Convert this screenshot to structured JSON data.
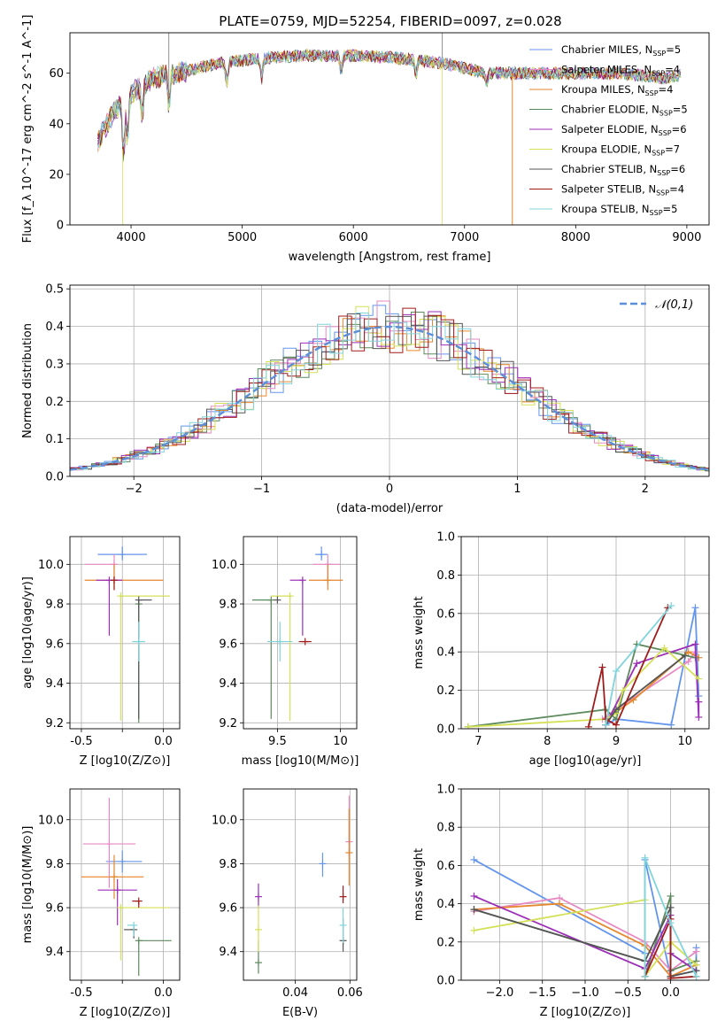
{
  "figure": {
    "title": "PLATE=0759, MJD=52254, FIBERID=0097, z=0.028",
    "colors": [
      "#6495ed",
      "#e78ac3",
      "#e6862d",
      "#5d8a5d",
      "#9c2fb8",
      "#d4e157",
      "#555555",
      "#a01c1c",
      "#80d4dc"
    ]
  },
  "legend": {
    "entries": [
      {
        "name": "Chabrier MILES",
        "n": "5"
      },
      {
        "name": "Salpeter MILES",
        "n": "4"
      },
      {
        "name": "Kroupa MILES",
        "n": "4"
      },
      {
        "name": "Chabrier ELODIE",
        "n": "5"
      },
      {
        "name": "Salpeter ELODIE",
        "n": "6"
      },
      {
        "name": "Kroupa ELODIE",
        "n": "7"
      },
      {
        "name": "Chabrier STELIB",
        "n": "6"
      },
      {
        "name": "Salpeter STELIB",
        "n": "4"
      },
      {
        "name": "Kroupa STELIB",
        "n": "5"
      }
    ],
    "n_prefix": "N",
    "n_sub": "SSP",
    "gauss_label": "𝒩(0,1)"
  },
  "chart_data": [
    {
      "id": "spectrum",
      "type": "line",
      "xlabel": "wavelength [Angstrom, rest frame]",
      "ylabel": "Flux [f_λ 10^-17 erg cm^-2 s^-1 A^-1]",
      "xlim": [
        3450,
        9200
      ],
      "ylim": [
        0,
        76
      ],
      "xticks": [
        4000,
        5000,
        6000,
        7000,
        8000,
        9000
      ],
      "yticks": [
        0,
        20,
        40,
        60
      ],
      "grid": false,
      "legend_position": "top-right",
      "continuum_x": [
        3700,
        3850,
        4000,
        4200,
        4500,
        4800,
        5200,
        5600,
        6000,
        6400,
        6800,
        7200,
        7600,
        8000,
        8400,
        8800,
        9000
      ],
      "continuum_y": [
        33,
        45,
        52,
        58,
        61,
        64,
        66,
        67,
        67,
        66,
        64,
        60,
        60,
        60,
        60,
        58,
        60
      ]
    },
    {
      "id": "residuals",
      "type": "histogram",
      "xlabel": "(data-model)/error",
      "ylabel": "Normed distribution",
      "xlim": [
        -2.5,
        2.5
      ],
      "ylim": [
        0,
        0.51
      ],
      "xticks": [
        -2,
        -1,
        0,
        1,
        2
      ],
      "yticks": [
        0.0,
        0.1,
        0.2,
        0.3,
        0.4,
        0.5
      ],
      "grid": true,
      "legend_position": "top-right",
      "bin_width": 0.1,
      "gaussian": {
        "mean": 0,
        "sigma": 1
      }
    },
    {
      "id": "age_vs_Z",
      "type": "scatter",
      "xlabel": "Z [log10(Z/Z⊙)]",
      "ylabel": "age [log10(age/yr)]",
      "xlim": [
        -0.57,
        0.1
      ],
      "ylim": [
        9.17,
        10.14
      ],
      "xticks": [
        -0.5,
        -0.25,
        0.0
      ],
      "xtick_labels": [
        "-0.5",
        "",
        "0.0"
      ],
      "yticks": [
        9.2,
        9.4,
        9.6,
        9.8,
        10.0
      ],
      "grid": true,
      "points": [
        {
          "x": -0.25,
          "xerr": [
            0.15,
            0.15
          ],
          "y": 10.05,
          "yerr": [
            0.03,
            0.04
          ]
        },
        {
          "x": -0.3,
          "xerr": [
            0.18,
            0.0
          ],
          "y": 10.0,
          "yerr": [
            0.07,
            0.05
          ]
        },
        {
          "x": -0.3,
          "xerr": [
            0.18,
            0.3
          ],
          "y": 9.92,
          "yerr": [
            0.05,
            0.08
          ]
        },
        {
          "x": -0.15,
          "xerr": [
            0.0,
            0.0
          ],
          "y": 9.8,
          "yerr": [
            0.6,
            0.0
          ]
        },
        {
          "x": -0.33,
          "xerr": [
            0.08,
            0.08
          ],
          "y": 9.92,
          "yerr": [
            0.28,
            0.0
          ]
        },
        {
          "x": -0.26,
          "xerr": [
            0.0,
            0.3
          ],
          "y": 9.84,
          "yerr": [
            0.63,
            0.0
          ]
        },
        {
          "x": -0.15,
          "xerr": [
            0.0,
            0.08
          ],
          "y": 9.82,
          "yerr": [
            0.6,
            0.0
          ]
        },
        {
          "x": -0.3,
          "xerr": [
            0.0,
            0.0
          ],
          "y": 9.92,
          "yerr": [
            0.05,
            0.0
          ]
        },
        {
          "x": -0.15,
          "xerr": [
            0.04,
            0.04
          ],
          "y": 9.61,
          "yerr": [
            0.1,
            0.1
          ]
        }
      ]
    },
    {
      "id": "age_vs_mass",
      "type": "scatter",
      "xlabel": "mass [log10(M/M⊙)]",
      "ylabel": "",
      "xlim": [
        9.23,
        10.13
      ],
      "ylim": [
        9.17,
        10.14
      ],
      "xticks": [
        9.5,
        10.0
      ],
      "yticks": [
        9.2,
        9.4,
        9.6,
        9.8,
        10.0
      ],
      "grid": true,
      "points": [
        {
          "x": 9.85,
          "xerr": [
            0.05,
            0.05
          ],
          "y": 10.05,
          "yerr": [
            0.03,
            0.04
          ]
        },
        {
          "x": 9.9,
          "xerr": [
            0.12,
            0.1
          ],
          "y": 10.0,
          "yerr": [
            0.07,
            0.05
          ]
        },
        {
          "x": 9.9,
          "xerr": [
            0.15,
            0.12
          ],
          "y": 9.92,
          "yerr": [
            0.05,
            0.08
          ]
        },
        {
          "x": 9.45,
          "xerr": [
            0.15,
            0.0
          ],
          "y": 9.82,
          "yerr": [
            0.6,
            0.0
          ]
        },
        {
          "x": 9.7,
          "xerr": [
            0.1,
            0.0
          ],
          "y": 9.92,
          "yerr": [
            0.28,
            0.0
          ]
        },
        {
          "x": 9.6,
          "xerr": [
            0.15,
            0.0
          ],
          "y": 9.84,
          "yerr": [
            0.63,
            0.0
          ]
        },
        {
          "x": 9.5,
          "xerr": [
            0.0,
            0.0
          ],
          "y": 9.82,
          "yerr": [
            0.0,
            0.0
          ]
        },
        {
          "x": 9.72,
          "xerr": [
            0.05,
            0.05
          ],
          "y": 9.61,
          "yerr": [
            0.0,
            0.0
          ]
        },
        {
          "x": 9.52,
          "xerr": [
            0.1,
            0.1
          ],
          "y": 9.61,
          "yerr": [
            0.1,
            0.1
          ]
        }
      ]
    },
    {
      "id": "weight_vs_age",
      "type": "line",
      "xlabel": "age [log10(age/yr)]",
      "ylabel": "mass weight",
      "xlim": [
        6.75,
        10.35
      ],
      "ylim": [
        0,
        1.0
      ],
      "xticks": [
        7,
        8,
        9,
        10
      ],
      "yticks": [
        0.0,
        0.2,
        0.4,
        0.6,
        0.8,
        1.0
      ],
      "grid": true,
      "series": [
        {
          "x": [
            8.85,
            9.0,
            9.8,
            10.15,
            10.2
          ],
          "y": [
            0.02,
            0.05,
            0.02,
            0.63,
            0.17
          ]
        },
        {
          "x": [
            8.8,
            9.0,
            10.05,
            10.15
          ],
          "y": [
            0.05,
            0.1,
            0.35,
            0.4
          ]
        },
        {
          "x": [
            8.85,
            9.25,
            10.05,
            10.2
          ],
          "y": [
            0.05,
            0.15,
            0.4,
            0.37
          ]
        },
        {
          "x": [
            6.85,
            8.85,
            9.0,
            9.3,
            10.15
          ],
          "y": [
            0.01,
            0.1,
            0.05,
            0.44,
            0.37
          ]
        },
        {
          "x": [
            8.85,
            9.3,
            10.15,
            10.2,
            10.2
          ],
          "y": [
            0.02,
            0.34,
            0.44,
            0.06,
            0.14
          ]
        },
        {
          "x": [
            6.85,
            8.85,
            9.0,
            9.1,
            9.7,
            10.2
          ],
          "y": [
            0.01,
            0.05,
            0.08,
            0.2,
            0.42,
            0.26
          ]
        },
        {
          "x": [
            8.85,
            9.0,
            10.0
          ],
          "y": [
            0.02,
            0.1,
            0.38
          ]
        },
        {
          "x": [
            8.6,
            8.8,
            8.85,
            9.0,
            9.75
          ],
          "y": [
            0.01,
            0.32,
            0.05,
            0.02,
            0.63
          ]
        },
        {
          "x": [
            8.85,
            9.0,
            9.8
          ],
          "y": [
            0.02,
            0.3,
            0.64
          ]
        }
      ]
    },
    {
      "id": "mass_vs_Z",
      "type": "scatter",
      "xlabel": "Z [log10(Z/Z⊙)]",
      "ylabel": "mass [log10(M/M⊙)]",
      "xlim": [
        -0.57,
        0.1
      ],
      "ylim": [
        9.27,
        10.14
      ],
      "xticks": [
        -0.5,
        -0.25,
        0.0
      ],
      "xtick_labels": [
        "-0.5",
        "",
        "0.0"
      ],
      "yticks": [
        9.4,
        9.6,
        9.8,
        10.0
      ],
      "grid": true,
      "points": [
        {
          "x": -0.25,
          "xerr": [
            0.1,
            0.12
          ],
          "y": 9.81,
          "yerr": [
            0.05,
            0.05
          ]
        },
        {
          "x": -0.33,
          "xerr": [
            0.16,
            0.16
          ],
          "y": 9.89,
          "yerr": [
            0.2,
            0.21
          ]
        },
        {
          "x": -0.3,
          "xerr": [
            0.2,
            0.18
          ],
          "y": 9.74,
          "yerr": [
            0.1,
            0.1
          ]
        },
        {
          "x": -0.15,
          "xerr": [
            0.0,
            0.2
          ],
          "y": 9.45,
          "yerr": [
            0.16,
            0.0
          ]
        },
        {
          "x": -0.28,
          "xerr": [
            0.12,
            0.12
          ],
          "y": 9.68,
          "yerr": [
            0.16,
            0.05
          ]
        },
        {
          "x": -0.26,
          "xerr": [
            0.0,
            0.3
          ],
          "y": 9.6,
          "yerr": [
            0.24,
            0.0
          ]
        },
        {
          "x": -0.18,
          "xerr": [
            0.06,
            0.0
          ],
          "y": 9.5,
          "yerr": [
            0.04,
            0.0
          ]
        },
        {
          "x": -0.15,
          "xerr": [
            0.04,
            0.0
          ],
          "y": 9.63,
          "yerr": [
            0.03,
            0.0
          ]
        },
        {
          "x": -0.18,
          "xerr": [
            0.04,
            0.0
          ],
          "y": 9.52,
          "yerr": [
            0.05,
            0.0
          ]
        }
      ]
    },
    {
      "id": "mass_vs_ebv",
      "type": "scatter",
      "xlabel": "E(B-V)",
      "ylabel": "",
      "xlim": [
        0.021,
        0.0625
      ],
      "ylim": [
        9.27,
        10.14
      ],
      "xticks": [
        0.04,
        0.06
      ],
      "yticks": [
        9.4,
        9.6,
        9.8,
        10.0
      ],
      "grid": true,
      "points": [
        {
          "x": 0.05,
          "xerr": [
            0,
            0
          ],
          "y": 9.8,
          "yerr": [
            0.06,
            0.05
          ]
        },
        {
          "x": 0.0597,
          "xerr": [
            0,
            0
          ],
          "y": 9.9,
          "yerr": [
            0.0,
            0.21
          ]
        },
        {
          "x": 0.0597,
          "xerr": [
            0,
            0
          ],
          "y": 9.85,
          "yerr": [
            0.15,
            0.2
          ]
        },
        {
          "x": 0.0265,
          "xerr": [
            0,
            0
          ],
          "y": 9.35,
          "yerr": [
            0.05,
            0.1
          ]
        },
        {
          "x": 0.0265,
          "xerr": [
            0,
            0
          ],
          "y": 9.65,
          "yerr": [
            0.05,
            0.06
          ]
        },
        {
          "x": 0.0265,
          "xerr": [
            0,
            0
          ],
          "y": 9.5,
          "yerr": [
            0.1,
            0.11
          ]
        },
        {
          "x": 0.0575,
          "xerr": [
            0,
            0
          ],
          "y": 9.45,
          "yerr": [
            0.05,
            0.1
          ]
        },
        {
          "x": 0.0575,
          "xerr": [
            0,
            0
          ],
          "y": 9.65,
          "yerr": [
            0.03,
            0.05
          ]
        },
        {
          "x": 0.0575,
          "xerr": [
            0,
            0
          ],
          "y": 9.52,
          "yerr": [
            0.08,
            0.08
          ]
        }
      ]
    },
    {
      "id": "weight_vs_Z",
      "type": "line",
      "xlabel": "Z [log10(Z/Z⊙)]",
      "ylabel": "mass weight",
      "xlim": [
        -2.45,
        0.45
      ],
      "ylim": [
        0,
        1.0
      ],
      "xticks": [
        -2.0,
        -1.5,
        -1.0,
        -0.5,
        0.0
      ],
      "yticks": [
        0.0,
        0.2,
        0.4,
        0.6,
        0.8,
        1.0
      ],
      "grid": true,
      "series": [
        {
          "x": [
            -2.3,
            -0.3,
            -0.3,
            0.0,
            0.3,
            0.3
          ],
          "y": [
            0.63,
            0.14,
            0.63,
            0.02,
            0.05,
            0.17
          ]
        },
        {
          "x": [
            -2.3,
            -1.3,
            -0.3,
            0.0,
            0.3
          ],
          "y": [
            0.36,
            0.43,
            0.2,
            0.05,
            0.15
          ]
        },
        {
          "x": [
            -2.3,
            -1.3,
            -0.3,
            0.0,
            0.3
          ],
          "y": [
            0.37,
            0.4,
            0.18,
            0.02,
            0.08
          ]
        },
        {
          "x": [
            -2.3,
            -0.3,
            -0.3,
            0.0,
            0.0,
            0.3
          ],
          "y": [
            0.37,
            0.1,
            0.02,
            0.44,
            0.05,
            0.1
          ]
        },
        {
          "x": [
            -2.3,
            -0.3,
            0.0,
            0.0,
            0.3
          ],
          "y": [
            0.44,
            0.06,
            0.34,
            0.14,
            0.05
          ]
        },
        {
          "x": [
            -2.3,
            -0.3,
            -0.3,
            0.0,
            0.3
          ],
          "y": [
            0.26,
            0.42,
            0.02,
            0.2,
            0.08
          ]
        },
        {
          "x": [
            -2.3,
            -0.3,
            0.0,
            0.0,
            0.3
          ],
          "y": [
            0.37,
            0.1,
            0.38,
            0.02,
            0.05
          ]
        },
        {
          "x": [
            -0.3,
            0.0,
            0.0,
            0.3
          ],
          "y": [
            0.02,
            0.32,
            0.01,
            0.02
          ]
        },
        {
          "x": [
            -0.3,
            -0.3,
            0.0,
            0.3
          ],
          "y": [
            0.02,
            0.64,
            0.3,
            0.02
          ]
        }
      ]
    }
  ]
}
